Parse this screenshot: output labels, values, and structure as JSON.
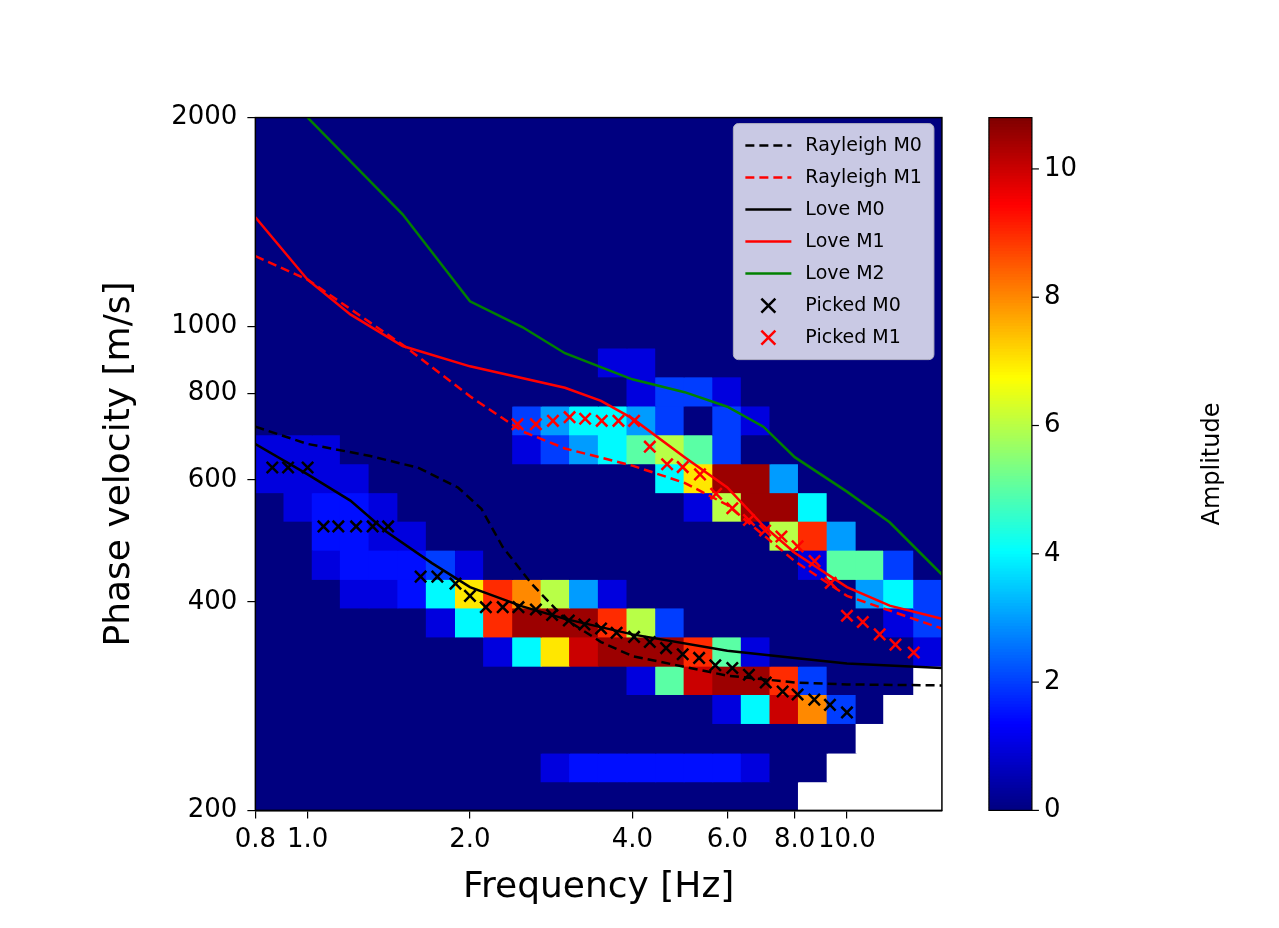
{
  "chart_data": {
    "type": "line",
    "x_label": "Frequency [Hz]",
    "y_label": "Phase velocity [m/s]",
    "log": true,
    "grid": false,
    "legend": "upper right",
    "xlim": [
      0.8,
      15
    ],
    "ylim": [
      200,
      2000
    ],
    "xticks": [
      0.8,
      {
        "value": 1,
        "label": "1.0"
      },
      {
        "value": 2,
        "label": "2.0"
      },
      {
        "value": 4,
        "label": "4.0"
      },
      {
        "value": 6,
        "label": "6.0"
      },
      {
        "value": 8,
        "label": "8.0"
      },
      {
        "value": 10,
        "label": "10.0"
      }
    ],
    "yticks": [
      200,
      400,
      600,
      800,
      1000,
      2000
    ],
    "series": [
      {
        "name": "Rayleigh M0",
        "type": "line",
        "color": "#000000",
        "line_style": "dashed",
        "x": [
          0.8,
          1.0,
          1.3,
          1.6,
          1.9,
          2.1,
          2.3,
          2.6,
          3.0,
          3.5,
          4.0,
          6.0,
          8.0,
          10,
          15
        ],
        "values": [
          716,
          676,
          650,
          625,
          585,
          545,
          480,
          425,
          378,
          350,
          334,
          313,
          306,
          304,
          303
        ]
      },
      {
        "name": "Rayleigh M1",
        "type": "line",
        "color": "#ff0000",
        "line_style": "dashed",
        "x": [
          0.8,
          1.0,
          1.5,
          2.0,
          2.5,
          3.0,
          4.0,
          5.0,
          6.0,
          8.0,
          10,
          15
        ],
        "values": [
          1262,
          1167,
          940,
          792,
          705,
          666,
          629,
          594,
          552,
          458,
          408,
          366
        ]
      },
      {
        "name": "Love M0",
        "type": "line",
        "color": "#000000",
        "line_style": "solid",
        "x": [
          0.8,
          1.0,
          1.2,
          1.4,
          1.7,
          2.0,
          2.5,
          3.0,
          4.0,
          6.0,
          8.0,
          10,
          15
        ],
        "values": [
          676,
          611,
          560,
          505,
          455,
          420,
          394,
          378,
          359,
          340,
          332,
          326,
          321
        ]
      },
      {
        "name": "Love M1",
        "type": "line",
        "color": "#ff0000",
        "line_style": "solid",
        "x": [
          0.8,
          1.0,
          1.2,
          1.5,
          2.0,
          3.0,
          3.5,
          4.0,
          5.0,
          6.0,
          7.0,
          8.0,
          10,
          12,
          15
        ],
        "values": [
          1436,
          1167,
          1040,
          936,
          875,
          815,
          780,
          736,
          647,
          585,
          515,
          471,
          420,
          395,
          378
        ]
      },
      {
        "name": "Love M2",
        "type": "line",
        "color": "#008000",
        "line_style": "solid",
        "x": [
          1.0,
          1.5,
          2.0,
          2.5,
          3.0,
          4.0,
          5.0,
          6.0,
          7.0,
          8.0,
          10,
          12,
          15
        ],
        "values": [
          2000,
          1450,
          1086,
          997,
          914,
          838,
          803,
          765,
          716,
          647,
          577,
          521,
          438
        ]
      },
      {
        "name": "Picked M0",
        "type": "scatter",
        "color": "#000000",
        "marker": "x",
        "x": [
          0.86,
          0.92,
          1.0,
          1.07,
          1.14,
          1.23,
          1.32,
          1.41,
          1.62,
          1.74,
          1.88,
          2.0,
          2.14,
          2.3,
          2.46,
          2.65,
          2.84,
          3.05,
          3.26,
          3.5,
          3.74,
          4.03,
          4.31,
          4.62,
          4.96,
          5.32,
          5.7,
          6.13,
          6.58,
          7.07,
          7.6,
          8.1,
          8.7,
          9.3,
          10.0
        ],
        "values": [
          625,
          625,
          625,
          514,
          514,
          514,
          514,
          514,
          435,
          435,
          425,
          408,
          393,
          393,
          393,
          390,
          383,
          376,
          371,
          366,
          361,
          356,
          350,
          343,
          336,
          332,
          324,
          321,
          314,
          306,
          297,
          294,
          289,
          284,
          277
        ]
      },
      {
        "name": "Picked M1",
        "type": "scatter",
        "color": "#ff0000",
        "marker": "x",
        "x": [
          2.45,
          2.65,
          2.85,
          3.06,
          3.27,
          3.51,
          3.77,
          4.03,
          4.31,
          4.64,
          4.96,
          5.34,
          5.72,
          6.13,
          6.58,
          7.05,
          7.56,
          8.1,
          8.71,
          9.33,
          10.0,
          10.7,
          11.5,
          12.3,
          13.3
        ],
        "values": [
          722,
          722,
          730,
          739,
          735,
          730,
          730,
          730,
          670,
          632,
          626,
          611,
          573,
          546,
          525,
          507,
          497,
          481,
          458,
          426,
          382,
          374,
          359,
          347,
          338
        ]
      }
    ],
    "heatmap": {
      "x_edges": [
        0.8,
        0.904,
        1.02,
        1.15,
        1.3,
        1.47,
        1.66,
        1.88,
        2.12,
        2.4,
        2.71,
        3.06,
        3.46,
        3.91,
        4.42,
        4.99,
        5.64,
        6.37,
        7.2,
        8.13,
        9.19,
        10.4,
        11.7,
        13.3,
        15
      ],
      "y_edges": [
        200,
        220,
        242,
        267,
        294,
        323,
        356,
        392,
        431,
        475,
        523,
        575,
        633,
        697,
        767,
        845,
        930,
        1024,
        1127,
        1240,
        1365,
        1503,
        1654,
        1821,
        2000
      ],
      "values": [
        [
          0,
          0,
          0,
          0,
          0,
          0,
          0,
          0,
          0,
          0,
          0,
          0,
          0,
          0,
          0,
          0,
          0,
          0,
          0,
          null,
          null,
          null,
          null,
          null
        ],
        [
          0,
          0,
          0,
          0,
          0,
          0,
          0,
          0,
          0,
          0,
          1,
          1.5,
          1.5,
          1.5,
          1.5,
          1.5,
          1.5,
          1,
          0,
          0,
          null,
          null,
          null,
          null
        ],
        [
          0,
          0,
          0,
          0,
          0,
          0,
          0,
          0,
          0,
          0,
          0,
          0,
          0,
          0,
          0,
          0,
          0,
          0,
          0,
          0,
          0,
          null,
          null,
          null
        ],
        [
          0,
          0,
          0,
          0,
          0,
          0,
          0,
          0,
          0,
          0,
          0,
          0,
          0,
          0,
          0,
          0,
          1,
          4,
          10,
          8,
          2,
          0,
          null,
          null
        ],
        [
          0,
          0,
          0,
          0,
          0,
          0,
          0,
          0,
          0,
          0,
          0,
          0,
          0,
          1,
          5,
          10,
          10.5,
          10.5,
          9,
          2,
          0,
          0,
          0,
          null
        ],
        [
          0,
          0,
          0,
          0,
          0,
          0,
          0,
          0,
          1,
          4,
          7,
          10,
          10.5,
          10.5,
          10.5,
          9,
          5,
          1,
          0,
          0,
          0,
          0,
          0,
          1
        ],
        [
          0,
          0,
          0,
          0,
          0,
          0,
          1,
          4,
          9,
          10.5,
          10.5,
          10.5,
          9,
          6,
          2,
          0,
          0,
          0,
          0,
          0,
          0,
          0,
          1,
          2
        ],
        [
          0,
          0,
          0,
          1,
          1,
          1.5,
          4,
          7,
          9,
          8,
          6,
          3,
          1,
          0,
          0,
          0,
          0,
          0,
          0,
          0,
          0,
          3,
          4,
          2
        ],
        [
          0,
          0,
          1,
          1.5,
          1.5,
          1.5,
          2,
          1,
          0,
          0,
          0,
          0,
          0,
          0,
          0,
          0,
          0,
          0,
          0,
          1,
          5,
          5,
          2,
          0
        ],
        [
          0,
          0,
          1.5,
          1.5,
          1,
          1,
          0,
          0,
          0,
          0,
          0,
          0,
          0,
          0,
          0,
          0,
          0,
          0,
          6,
          9,
          3,
          0,
          0,
          0
        ],
        [
          0,
          1,
          1.5,
          1.5,
          1,
          0,
          0,
          0,
          0,
          0,
          0,
          0,
          0,
          0,
          0,
          1,
          6,
          10.5,
          10.5,
          4,
          0,
          0,
          0,
          0
        ],
        [
          1,
          1,
          1,
          1,
          0,
          0,
          0,
          0,
          0,
          0,
          0,
          0,
          0,
          0,
          4,
          7,
          10.5,
          10.5,
          3,
          0,
          0,
          0,
          0,
          0
        ],
        [
          1,
          1,
          1,
          0,
          0,
          0,
          0,
          0,
          0,
          1,
          2,
          3,
          4,
          5,
          6,
          5,
          2,
          0,
          0,
          0,
          0,
          0,
          0,
          0
        ],
        [
          0,
          0,
          0,
          0,
          0,
          0,
          0,
          0,
          0,
          2,
          3,
          4,
          4,
          3,
          2,
          0,
          2,
          1,
          0,
          0,
          0,
          0,
          0,
          0
        ],
        [
          0,
          0,
          0,
          0,
          0,
          0,
          0,
          0,
          0,
          0,
          0,
          0,
          0,
          1,
          2,
          2,
          1,
          0,
          0,
          0,
          0,
          0,
          0,
          0
        ],
        [
          0,
          0,
          0,
          0,
          0,
          0,
          0,
          0,
          0,
          0,
          0,
          0,
          1,
          1,
          0,
          0,
          0,
          0,
          0,
          0,
          0,
          0,
          0,
          0
        ],
        [
          0,
          0,
          0,
          0,
          0,
          0,
          0,
          0,
          0,
          0,
          0,
          0,
          0,
          0,
          0,
          0,
          0,
          0,
          0,
          0,
          0,
          0,
          0,
          0
        ],
        [
          0,
          0,
          0,
          0,
          0,
          0,
          0,
          0,
          0,
          0,
          0,
          0,
          0,
          0,
          0,
          0,
          0,
          0,
          0,
          0,
          0,
          0,
          0,
          0
        ],
        [
          0,
          0,
          0,
          0,
          0,
          0,
          0,
          0,
          0,
          0,
          0,
          0,
          0,
          0,
          0,
          0,
          0,
          0,
          0,
          0,
          0,
          0,
          0,
          0
        ],
        [
          0,
          0,
          0,
          0,
          0,
          0,
          0,
          0,
          0,
          0,
          0,
          0,
          0,
          0,
          0,
          0,
          0,
          0,
          0,
          0,
          0,
          0,
          0,
          0
        ],
        [
          0,
          0,
          0,
          0,
          0,
          0,
          0,
          0,
          0,
          0,
          0,
          0,
          0,
          0,
          0,
          0,
          0,
          0,
          0,
          0,
          0,
          0,
          0,
          0
        ],
        [
          0,
          0,
          0,
          0,
          0,
          0,
          0,
          0,
          0,
          0,
          0,
          0,
          0,
          0,
          0,
          0,
          0,
          0,
          0,
          0,
          0,
          0,
          0,
          0
        ],
        [
          0,
          0,
          0,
          0,
          0,
          0,
          0,
          0,
          0,
          0,
          0,
          0,
          0,
          0,
          0,
          0,
          0,
          0,
          0,
          0,
          0,
          0,
          0,
          0
        ],
        [
          0,
          0,
          0,
          0,
          0,
          0,
          0,
          0,
          0,
          0,
          0,
          0,
          0,
          0,
          0,
          0,
          0,
          0,
          0,
          0,
          0,
          0,
          0,
          0
        ]
      ],
      "colorbar": {
        "label": "Amplitude",
        "range": [
          0,
          10.8
        ],
        "ticks": [
          0,
          2,
          4,
          6,
          8,
          10
        ]
      }
    }
  }
}
